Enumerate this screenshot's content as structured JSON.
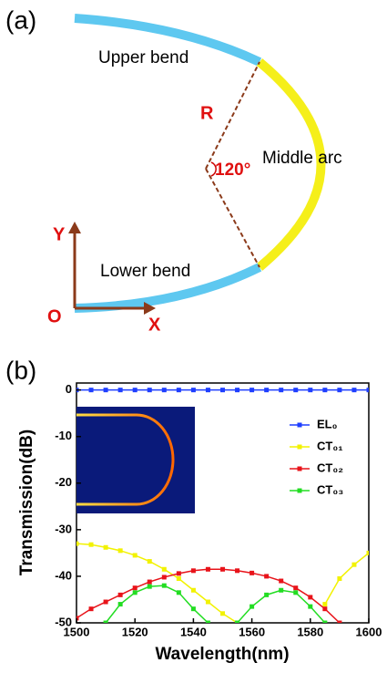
{
  "panel_a": {
    "label": "(a)",
    "upper": "Upper bend",
    "radius": "R",
    "angle": "120°",
    "middle": "Middle arc",
    "y_axis": "Y",
    "lower": "Lower bend",
    "origin": "O",
    "x_axis": "X"
  },
  "chart_data": {
    "type": "line",
    "panel_label": "(b)",
    "x_label": "Wavelength(nm)",
    "y_label": "Transmission(dB)",
    "x": [
      1500,
      1505,
      1510,
      1515,
      1520,
      1525,
      1530,
      1535,
      1540,
      1545,
      1550,
      1555,
      1560,
      1565,
      1570,
      1575,
      1580,
      1585,
      1590,
      1595,
      1600
    ],
    "series": [
      {
        "name": "EL₀",
        "color": "#1f3fff",
        "values": [
          0,
          0,
          0,
          0,
          0,
          0,
          0,
          0,
          0,
          0,
          0,
          0,
          0,
          0,
          0,
          0,
          0,
          0,
          0,
          0,
          0
        ]
      },
      {
        "name": "CT₀₁",
        "color": "#f2f200",
        "values": [
          -33,
          -33.2,
          -33.8,
          -34.5,
          -35.5,
          -36.8,
          -38.5,
          -40.5,
          -43,
          -45.5,
          -48,
          -50,
          null,
          null,
          null,
          null,
          null,
          -46,
          -40.5,
          -37.5,
          -35
        ]
      },
      {
        "name": "CT₀₂",
        "color": "#e8131a",
        "values": [
          -49,
          -47,
          -45.5,
          -44,
          -42.5,
          -41.2,
          -40.2,
          -39.4,
          -38.8,
          -38.5,
          -38.5,
          -38.8,
          -39.3,
          -40,
          -41,
          -42.5,
          -44.5,
          -47,
          -50,
          null,
          null
        ]
      },
      {
        "name": "CT₀₃",
        "color": "#22dd22",
        "values": [
          null,
          null,
          -50,
          -46,
          -43.5,
          -42.2,
          -42,
          -43.5,
          -47,
          -50,
          null,
          -50,
          -46.5,
          -44,
          -43,
          -43.5,
          -46.5,
          -50,
          null,
          null,
          null
        ]
      }
    ],
    "xlim": [
      1500,
      1600
    ],
    "xticks": [
      1500,
      1520,
      1540,
      1560,
      1580,
      1600
    ],
    "ylim": [
      -50,
      1.5
    ],
    "yticks": [
      0,
      -10,
      -20,
      -30,
      -40,
      -50
    ],
    "legend": "upper-right"
  }
}
